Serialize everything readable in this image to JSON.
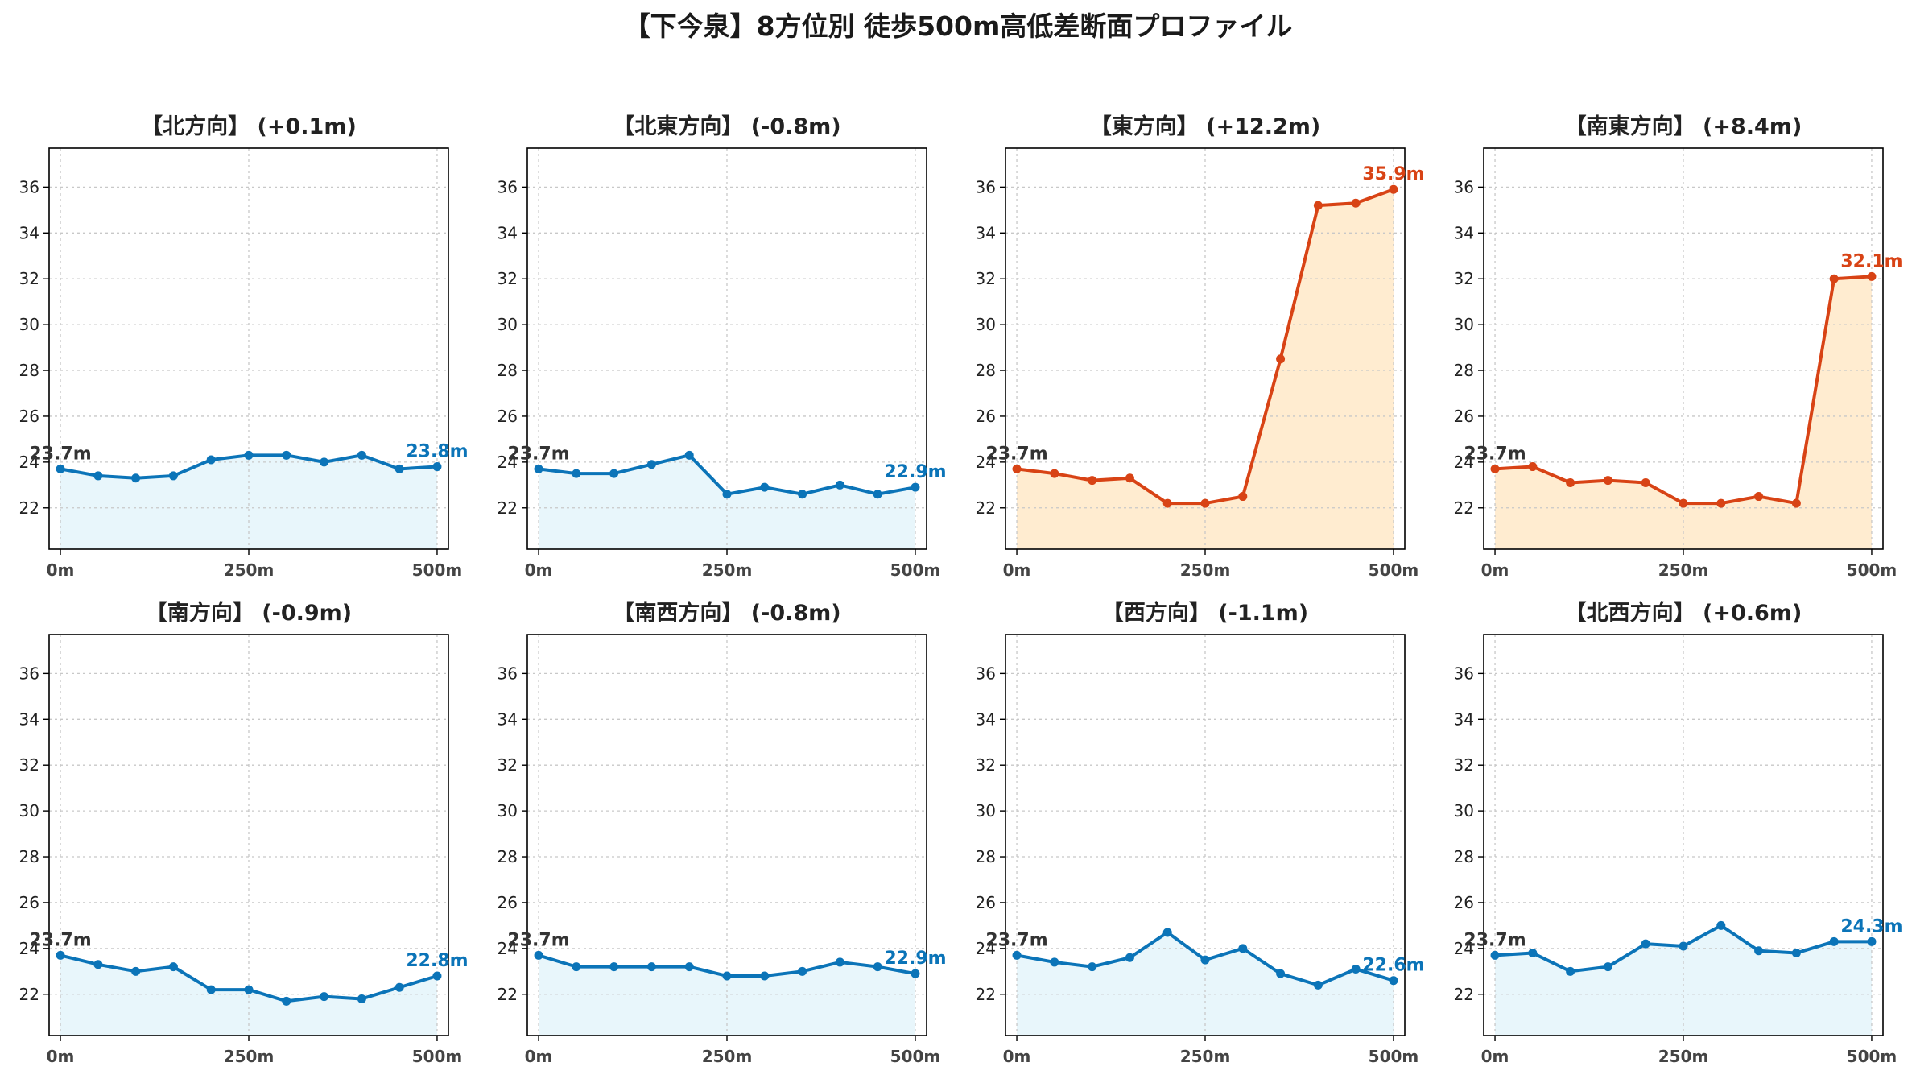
{
  "title": "【下今泉】8方位別 徒歩500m高低差断面プロファイル",
  "colors": {
    "up_line": "#d84315",
    "up_fill": "#ffecd0",
    "flat_line": "#0b74b8",
    "flat_fill": "#e8f6fb",
    "start_label": "#333333",
    "grid": "#c8c8c8",
    "axes": "#000000"
  },
  "chart_data": [
    {
      "type": "line",
      "title": "【北方向】 (+0.1m)",
      "trend": "flat",
      "x": [
        0,
        50,
        100,
        150,
        200,
        250,
        300,
        350,
        400,
        450,
        500
      ],
      "values": [
        23.7,
        23.4,
        23.3,
        23.4,
        24.1,
        24.3,
        24.3,
        24.0,
        24.3,
        23.7,
        23.8
      ],
      "start_label": "23.7m",
      "end_label": "23.8m",
      "xticks": [
        "0m",
        "250m",
        "500m"
      ],
      "yticks": [
        22,
        24,
        26,
        28,
        30,
        32,
        34,
        36
      ],
      "ylim": [
        20.2,
        37.7
      ],
      "xlim": [
        -15,
        515
      ],
      "grid": true,
      "fill": true
    },
    {
      "type": "line",
      "title": "【北東方向】 (-0.8m)",
      "trend": "flat",
      "x": [
        0,
        50,
        100,
        150,
        200,
        250,
        300,
        350,
        400,
        450,
        500
      ],
      "values": [
        23.7,
        23.5,
        23.5,
        23.9,
        24.3,
        22.6,
        22.9,
        22.6,
        23.0,
        22.6,
        22.9
      ],
      "start_label": "23.7m",
      "end_label": "22.9m",
      "xticks": [
        "0m",
        "250m",
        "500m"
      ],
      "yticks": [
        22,
        24,
        26,
        28,
        30,
        32,
        34,
        36
      ],
      "ylim": [
        20.2,
        37.7
      ],
      "xlim": [
        -15,
        515
      ],
      "grid": true,
      "fill": true
    },
    {
      "type": "line",
      "title": "【東方向】 (+12.2m)",
      "trend": "up",
      "x": [
        0,
        50,
        100,
        150,
        200,
        250,
        300,
        350,
        400,
        450,
        500
      ],
      "values": [
        23.7,
        23.5,
        23.2,
        23.3,
        22.2,
        22.2,
        22.5,
        28.5,
        35.2,
        35.3,
        35.9
      ],
      "start_label": "23.7m",
      "end_label": "35.9m",
      "xticks": [
        "0m",
        "250m",
        "500m"
      ],
      "yticks": [
        22,
        24,
        26,
        28,
        30,
        32,
        34,
        36
      ],
      "ylim": [
        20.2,
        37.7
      ],
      "xlim": [
        -15,
        515
      ],
      "grid": true,
      "fill": true
    },
    {
      "type": "line",
      "title": "【南東方向】 (+8.4m)",
      "trend": "up",
      "x": [
        0,
        50,
        100,
        150,
        200,
        250,
        300,
        350,
        400,
        450,
        500
      ],
      "values": [
        23.7,
        23.8,
        23.1,
        23.2,
        23.1,
        22.2,
        22.2,
        22.5,
        22.2,
        32.0,
        32.1
      ],
      "start_label": "23.7m",
      "end_label": "32.1m",
      "xticks": [
        "0m",
        "250m",
        "500m"
      ],
      "yticks": [
        22,
        24,
        26,
        28,
        30,
        32,
        34,
        36
      ],
      "ylim": [
        20.2,
        37.7
      ],
      "xlim": [
        -15,
        515
      ],
      "grid": true,
      "fill": true
    },
    {
      "type": "line",
      "title": "【南方向】 (-0.9m)",
      "trend": "flat",
      "x": [
        0,
        50,
        100,
        150,
        200,
        250,
        300,
        350,
        400,
        450,
        500
      ],
      "values": [
        23.7,
        23.3,
        23.0,
        23.2,
        22.2,
        22.2,
        21.7,
        21.9,
        21.8,
        22.3,
        22.8
      ],
      "start_label": "23.7m",
      "end_label": "22.8m",
      "xticks": [
        "0m",
        "250m",
        "500m"
      ],
      "yticks": [
        22,
        24,
        26,
        28,
        30,
        32,
        34,
        36
      ],
      "ylim": [
        20.2,
        37.7
      ],
      "xlim": [
        -15,
        515
      ],
      "grid": true,
      "fill": true
    },
    {
      "type": "line",
      "title": "【南西方向】 (-0.8m)",
      "trend": "flat",
      "x": [
        0,
        50,
        100,
        150,
        200,
        250,
        300,
        350,
        400,
        450,
        500
      ],
      "values": [
        23.7,
        23.2,
        23.2,
        23.2,
        23.2,
        22.8,
        22.8,
        23.0,
        23.4,
        23.2,
        22.9
      ],
      "start_label": "23.7m",
      "end_label": "22.9m",
      "xticks": [
        "0m",
        "250m",
        "500m"
      ],
      "yticks": [
        22,
        24,
        26,
        28,
        30,
        32,
        34,
        36
      ],
      "ylim": [
        20.2,
        37.7
      ],
      "xlim": [
        -15,
        515
      ],
      "grid": true,
      "fill": true
    },
    {
      "type": "line",
      "title": "【西方向】 (-1.1m)",
      "trend": "flat",
      "x": [
        0,
        50,
        100,
        150,
        200,
        250,
        300,
        350,
        400,
        450,
        500
      ],
      "values": [
        23.7,
        23.4,
        23.2,
        23.6,
        24.7,
        23.5,
        24.0,
        22.9,
        22.4,
        23.1,
        22.6
      ],
      "start_label": "23.7m",
      "end_label": "22.6m",
      "xticks": [
        "0m",
        "250m",
        "500m"
      ],
      "yticks": [
        22,
        24,
        26,
        28,
        30,
        32,
        34,
        36
      ],
      "ylim": [
        20.2,
        37.7
      ],
      "xlim": [
        -15,
        515
      ],
      "grid": true,
      "fill": true
    },
    {
      "type": "line",
      "title": "【北西方向】 (+0.6m)",
      "trend": "flat",
      "x": [
        0,
        50,
        100,
        150,
        200,
        250,
        300,
        350,
        400,
        450,
        500
      ],
      "values": [
        23.7,
        23.8,
        23.0,
        23.2,
        24.2,
        24.1,
        25.0,
        23.9,
        23.8,
        24.3,
        24.3
      ],
      "start_label": "23.7m",
      "end_label": "24.3m",
      "xticks": [
        "0m",
        "250m",
        "500m"
      ],
      "yticks": [
        22,
        24,
        26,
        28,
        30,
        32,
        34,
        36
      ],
      "ylim": [
        20.2,
        37.7
      ],
      "xlim": [
        -15,
        515
      ],
      "grid": true,
      "fill": true
    }
  ]
}
